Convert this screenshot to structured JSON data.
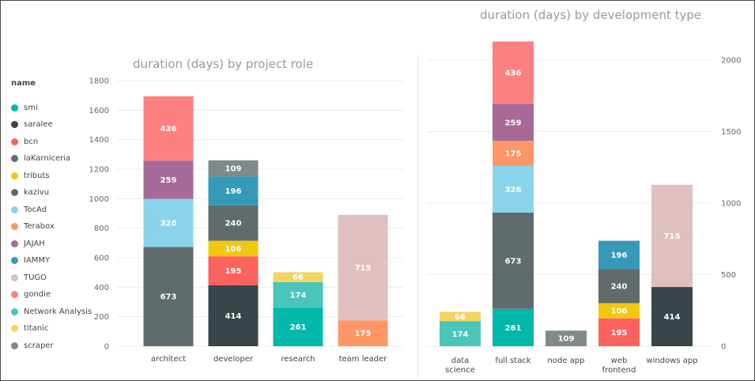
{
  "legend": {
    "title": "name",
    "items": [
      {
        "label": "smi",
        "color": "#01B8AA"
      },
      {
        "label": "saralee",
        "color": "#374649"
      },
      {
        "label": "bcn",
        "color": "#FD625E"
      },
      {
        "label": "laKarniceria",
        "color": "#5F6B6D"
      },
      {
        "label": "tributs",
        "color": "#F2C80F"
      },
      {
        "label": "kazivu",
        "color": "#5F6B6D"
      },
      {
        "label": "TocAd",
        "color": "#8AD4EB"
      },
      {
        "label": "Terabox",
        "color": "#FE9666"
      },
      {
        "label": "JAJAH",
        "color": "#A66999"
      },
      {
        "label": "IAMMY",
        "color": "#3599B8"
      },
      {
        "label": "TUGO",
        "color": "#DFBFBF"
      },
      {
        "label": "gondie",
        "color": "#FD8080"
      },
      {
        "label": "Network Analysis",
        "color": "#4AC5BB"
      },
      {
        "label": "titanic",
        "color": "#F5D45F"
      },
      {
        "label": "scraper",
        "color": "#818A8A"
      }
    ]
  },
  "chart_data": [
    {
      "type": "bar",
      "stacked": true,
      "title": "duration (days) by project role",
      "categories": [
        "architect",
        "developer",
        "research",
        "team leader"
      ],
      "ylim": [
        0,
        1800
      ],
      "yticks": [
        0,
        200,
        400,
        600,
        800,
        1000,
        1200,
        1400,
        1600,
        1800
      ],
      "axis_side": "left",
      "grid": true,
      "series": [
        {
          "name": "smi",
          "values": [
            0,
            0,
            261,
            0
          ]
        },
        {
          "name": "saralee",
          "values": [
            0,
            414,
            0,
            0
          ]
        },
        {
          "name": "bcn",
          "values": [
            0,
            195,
            0,
            0
          ]
        },
        {
          "name": "laKarniceria",
          "values": [
            673,
            0,
            0,
            0
          ]
        },
        {
          "name": "tributs",
          "values": [
            0,
            106,
            0,
            0
          ]
        },
        {
          "name": "kazivu",
          "values": [
            0,
            240,
            0,
            0
          ]
        },
        {
          "name": "TocAd",
          "values": [
            326,
            0,
            0,
            0
          ]
        },
        {
          "name": "Terabox",
          "values": [
            0,
            0,
            0,
            175
          ]
        },
        {
          "name": "JAJAH",
          "values": [
            259,
            0,
            0,
            0
          ]
        },
        {
          "name": "IAMMY",
          "values": [
            0,
            196,
            0,
            0
          ]
        },
        {
          "name": "TUGO",
          "values": [
            0,
            0,
            0,
            715
          ]
        },
        {
          "name": "gondie",
          "values": [
            436,
            0,
            0,
            0
          ]
        },
        {
          "name": "Network Analysis",
          "values": [
            0,
            0,
            174,
            0
          ]
        },
        {
          "name": "titanic",
          "values": [
            0,
            0,
            66,
            0
          ]
        },
        {
          "name": "scraper",
          "values": [
            0,
            109,
            0,
            0
          ]
        }
      ]
    },
    {
      "type": "bar",
      "stacked": true,
      "title": "duration (days) by development type",
      "categories": [
        "data science",
        "full stack",
        "node app",
        "web frontend",
        "windows app"
      ],
      "ylim": [
        0,
        2000
      ],
      "yticks": [
        0,
        500,
        1000,
        1500,
        2000
      ],
      "axis_side": "right",
      "grid": true,
      "series": [
        {
          "name": "smi",
          "values": [
            0,
            261,
            0,
            0,
            0
          ]
        },
        {
          "name": "saralee",
          "values": [
            0,
            0,
            0,
            0,
            414
          ]
        },
        {
          "name": "bcn",
          "values": [
            0,
            0,
            0,
            195,
            0
          ]
        },
        {
          "name": "laKarniceria",
          "values": [
            0,
            673,
            0,
            0,
            0
          ]
        },
        {
          "name": "tributs",
          "values": [
            0,
            0,
            0,
            106,
            0
          ]
        },
        {
          "name": "kazivu",
          "values": [
            0,
            0,
            0,
            240,
            0
          ]
        },
        {
          "name": "TocAd",
          "values": [
            0,
            326,
            0,
            0,
            0
          ]
        },
        {
          "name": "Terabox",
          "values": [
            0,
            175,
            0,
            0,
            0
          ]
        },
        {
          "name": "JAJAH",
          "values": [
            0,
            259,
            0,
            0,
            0
          ]
        },
        {
          "name": "IAMMY",
          "values": [
            0,
            0,
            0,
            196,
            0
          ]
        },
        {
          "name": "TUGO",
          "values": [
            0,
            0,
            0,
            0,
            715
          ]
        },
        {
          "name": "gondie",
          "values": [
            0,
            436,
            0,
            0,
            0
          ]
        },
        {
          "name": "Network Analysis",
          "values": [
            174,
            0,
            0,
            0,
            0
          ]
        },
        {
          "name": "titanic",
          "values": [
            66,
            0,
            0,
            0,
            0
          ]
        },
        {
          "name": "scraper",
          "values": [
            0,
            0,
            109,
            0,
            0
          ]
        }
      ]
    }
  ]
}
